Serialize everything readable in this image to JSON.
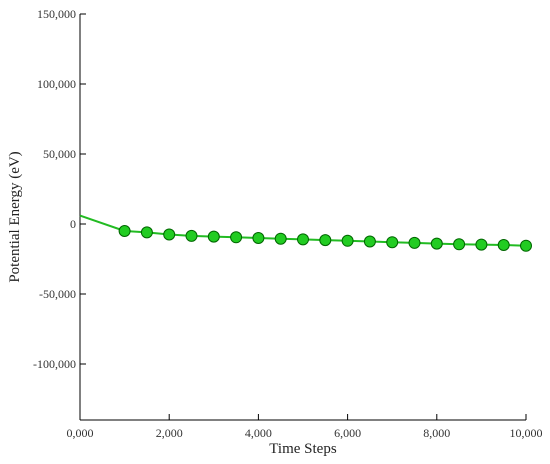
{
  "chart_data": {
    "type": "line",
    "title": "",
    "xlabel": "Time Steps",
    "ylabel": "Potential Energy (eV)",
    "xlim": [
      0,
      10000
    ],
    "ylim": [
      -140000,
      150000
    ],
    "x_ticks": [
      0,
      2000,
      4000,
      6000,
      8000,
      10000
    ],
    "x_tick_labels": [
      "0,000",
      "2,000",
      "4,000",
      "6,000",
      "8,000",
      "10,000"
    ],
    "y_ticks": [
      150000,
      100000,
      50000,
      0,
      -50000,
      -100000
    ],
    "y_tick_labels": [
      "150,000",
      "100,000",
      "50,000",
      "0",
      "-50,000",
      "-100,000"
    ],
    "grid": false,
    "legend": "none",
    "line_color": "#22bb22",
    "marker_color": "#22cc22",
    "marker_edge_color": "#006600",
    "series": [
      {
        "x": [
          0,
          1000,
          1500,
          2000,
          2500,
          3000,
          3500,
          4000,
          4500,
          5000,
          5500,
          6000,
          6500,
          7000,
          7500,
          8000,
          8500,
          9000,
          9500,
          10000
        ],
        "values": [
          6000,
          -5000,
          -6000,
          -7500,
          -8500,
          -9000,
          -9500,
          -10000,
          -10500,
          -11000,
          -11500,
          -12000,
          -12500,
          -13000,
          -13500,
          -14000,
          -14500,
          -14700,
          -15000,
          -15500
        ],
        "markers": [
          false,
          true,
          true,
          true,
          true,
          true,
          true,
          true,
          true,
          true,
          true,
          true,
          true,
          true,
          true,
          true,
          true,
          true,
          true,
          true
        ]
      }
    ]
  }
}
